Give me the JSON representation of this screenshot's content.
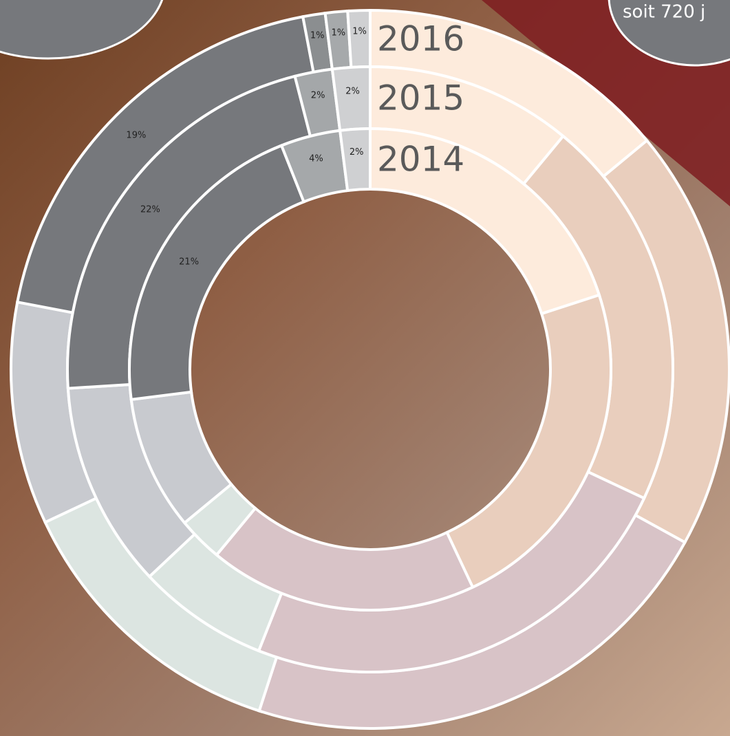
{
  "callout": "soit 720 j",
  "chart_data": {
    "type": "donut",
    "series": [
      {
        "name": "2016",
        "values": [
          14,
          19,
          22,
          13,
          10,
          19,
          1,
          1,
          1
        ],
        "value_labels": [
          null,
          null,
          null,
          null,
          null,
          "19%",
          "1%",
          "1%",
          "1%"
        ],
        "colors": [
          "#fdebdc",
          "#e9cebd",
          "#d8c3c7",
          "#dce5e1",
          "#c8cacf",
          "#76787c",
          "#8b8e90",
          "#a6a9ab",
          "#cfd0d2"
        ]
      },
      {
        "name": "2015",
        "values": [
          11,
          21,
          24,
          7,
          11,
          22,
          2,
          2
        ],
        "value_labels": [
          null,
          null,
          null,
          null,
          null,
          "22%",
          "2%",
          "2%"
        ],
        "colors": [
          "#fdebdc",
          "#e9cebd",
          "#d8c3c7",
          "#dce5e1",
          "#c8cacf",
          "#76787c",
          "#a4a7a9",
          "#cfd0d2"
        ]
      },
      {
        "name": "2014",
        "values": [
          20,
          23,
          18,
          3,
          9,
          21,
          4,
          2
        ],
        "value_labels": [
          null,
          null,
          null,
          null,
          null,
          "21%",
          "4%",
          "2%"
        ],
        "colors": [
          "#fdebdc",
          "#e9cebd",
          "#d8c3c7",
          "#dce5e1",
          "#c8cacf",
          "#76787c",
          "#a5a8aa",
          "#cfd0d2"
        ]
      }
    ]
  }
}
